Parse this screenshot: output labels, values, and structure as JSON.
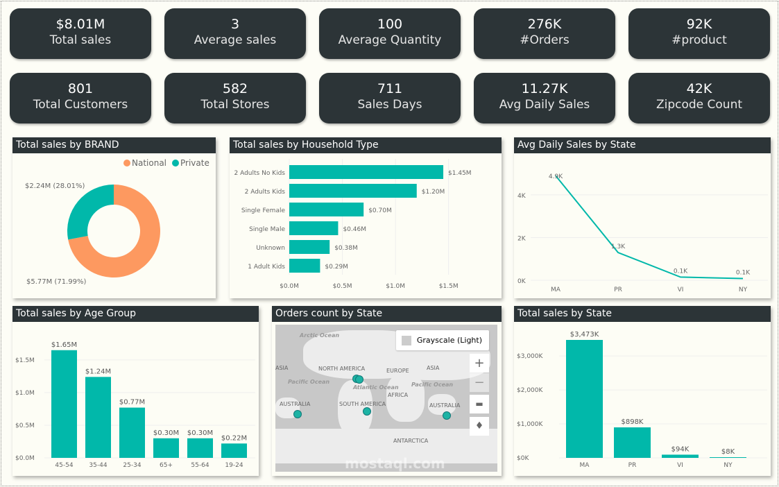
{
  "kpis_row1": [
    {
      "value": "$8.01M",
      "label": "Total sales"
    },
    {
      "value": "3",
      "label": "Average sales"
    },
    {
      "value": "100",
      "label": "Average Quantity"
    },
    {
      "value": "276K",
      "label": "#Orders"
    },
    {
      "value": "92K",
      "label": "#product"
    }
  ],
  "kpis_row2": [
    {
      "value": "801",
      "label": "Total Customers"
    },
    {
      "value": "582",
      "label": "Total Stores"
    },
    {
      "value": "711",
      "label": "Sales Days"
    },
    {
      "value": "11.27K",
      "label": "Avg Daily Sales"
    },
    {
      "value": "42K",
      "label": "Zipcode Count"
    }
  ],
  "accent": "#01b8aa",
  "map": {
    "title": "Orders count by State",
    "style_label": "Grayscale (Light)",
    "watermark": "mostaql.com",
    "labels": [
      "Arctic Ocean",
      "ASIA",
      "NORTH AMERICA",
      "EUROPE",
      "ASIA",
      "Pacific Ocean",
      "Atlantic Ocean",
      "Pacific Ocean",
      "AFRICA",
      "AUSTRALIA",
      "SOUTH AMERICA",
      "AUSTRALIA",
      "ANTARCTICA"
    ]
  },
  "chart_data": [
    {
      "type": "pie",
      "title": "Total sales by BRAND",
      "donut": true,
      "legend_position": "top-right",
      "categories": [
        "National",
        "Private"
      ],
      "values": [
        5.77,
        2.24
      ],
      "data_labels": [
        "$5.77M (71.99%)",
        "$2.24M (28.01%)"
      ],
      "colors": [
        "#fd9960",
        "#01b8aa"
      ]
    },
    {
      "type": "bar",
      "orientation": "horizontal",
      "title": "Total sales by Household Type",
      "categories": [
        "2 Adults No Kids",
        "2 Adults Kids",
        "Single Female",
        "Single Male",
        "Unknown",
        "1 Adult Kids"
      ],
      "values": [
        1.45,
        1.2,
        0.7,
        0.46,
        0.38,
        0.29
      ],
      "data_labels": [
        "$1.45M",
        "$1.20M",
        "$0.70M",
        "$0.46M",
        "$0.38M",
        "$0.29M"
      ],
      "xlim": [
        0,
        1.6
      ],
      "xticks": [
        "$0.0M",
        "$0.5M",
        "$1.0M",
        "$1.5M"
      ],
      "grid": true
    },
    {
      "type": "line",
      "title": "Avg Daily Sales by State",
      "categories": [
        "MA",
        "PR",
        "VI",
        "NY"
      ],
      "values": [
        4.9,
        1.3,
        0.15,
        0.08
      ],
      "data_labels": [
        "4.9K",
        "1.3K",
        "0.1K",
        "0.1K"
      ],
      "ylim": [
        0,
        5.2
      ],
      "yticks": [
        "0K",
        "2K",
        "4K"
      ],
      "grid": true
    },
    {
      "type": "bar",
      "title": "Total sales by Age Group",
      "categories": [
        "45-54",
        "35-44",
        "25-34",
        "65+",
        "55-64",
        "19-24"
      ],
      "values": [
        1.65,
        1.24,
        0.77,
        0.3,
        0.3,
        0.22
      ],
      "data_labels": [
        "$1.65M",
        "$1.24M",
        "$0.77M",
        "$0.30M",
        "$0.30M",
        "$0.22M"
      ],
      "ylim": [
        0,
        1.8
      ],
      "yticks": [
        "$0.0M",
        "$0.5M",
        "$1.0M",
        "$1.5M"
      ],
      "grid": true
    },
    {
      "type": "bar",
      "title": "Total sales by State",
      "categories": [
        "MA",
        "PR",
        "VI",
        "NY"
      ],
      "values": [
        3473,
        898,
        94,
        8
      ],
      "data_labels": [
        "$3,473K",
        "$898K",
        "$94K",
        "$8K"
      ],
      "ylim": [
        0,
        3800
      ],
      "yticks": [
        "$0K",
        "$1,000K",
        "$2,000K",
        "$3,000K"
      ],
      "grid": true
    }
  ]
}
